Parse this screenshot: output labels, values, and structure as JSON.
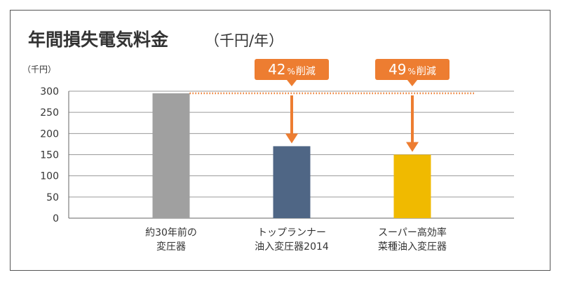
{
  "title": {
    "main": "年間損失電気料金",
    "sub": "（千円/年）"
  },
  "chart_data": {
    "type": "bar",
    "unit_label": "（千円）",
    "categories": [
      [
        "約30年前の",
        "変圧器"
      ],
      [
        "トップランナー",
        "油入変圧器2014"
      ],
      [
        "スーパー高効率",
        "菜種油入変圧器"
      ]
    ],
    "values": [
      295,
      170,
      150
    ],
    "ylim": [
      0,
      300
    ],
    "yticks": [
      0,
      50,
      100,
      150,
      200,
      250,
      300
    ],
    "grid": true,
    "bar_colors": [
      "#a0a0a0",
      "#4f6685",
      "#f0ba00"
    ],
    "reference_line": {
      "value": 295,
      "color": "#ed7d31",
      "style": "dotted"
    },
    "annotations": [
      {
        "category_index": 1,
        "number": "42",
        "percent": "%",
        "text": "削減"
      },
      {
        "category_index": 2,
        "number": "49",
        "percent": "%",
        "text": "削減"
      }
    ],
    "accent_color": "#ed7d31"
  }
}
